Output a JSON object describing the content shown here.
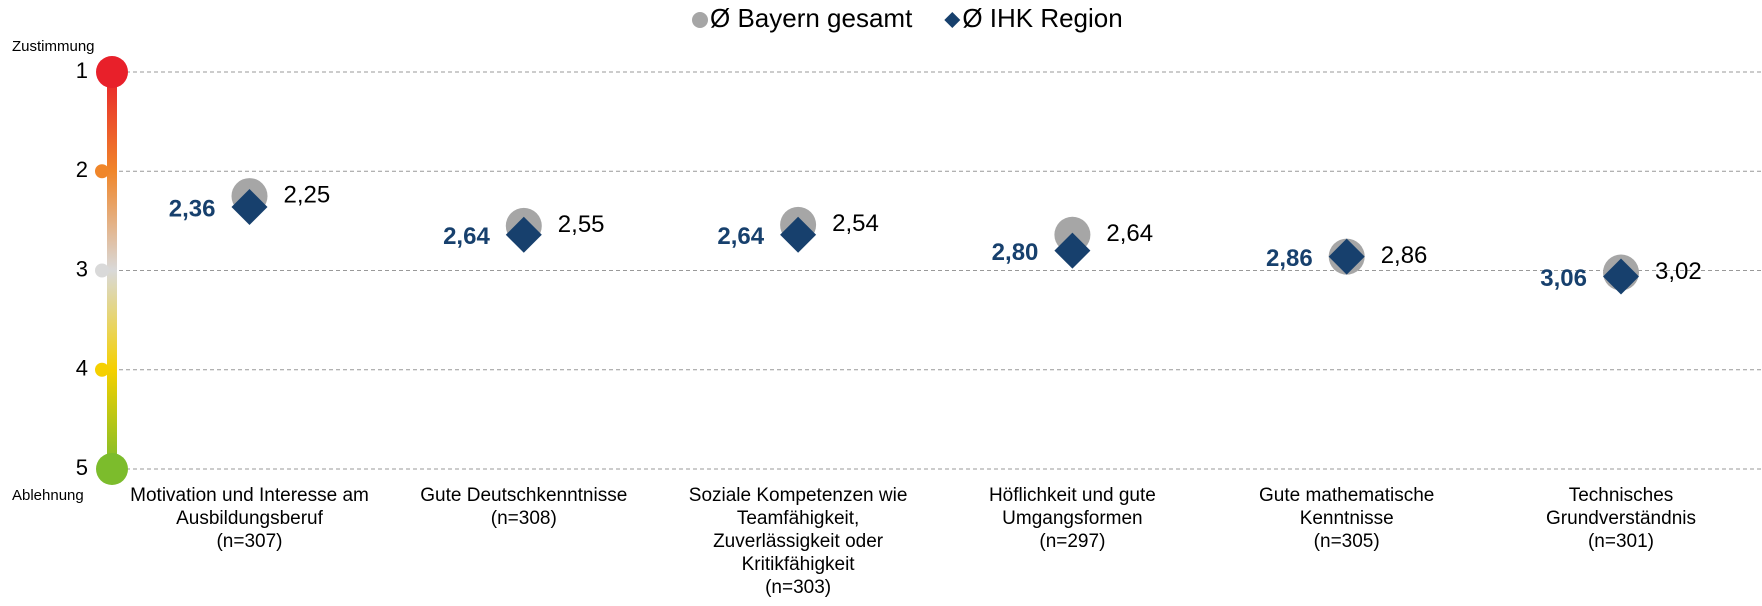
{
  "chart_data": {
    "type": "dot",
    "categories": [
      "Motivation und Interesse am\nAusbildungsberuf\n(n=307)",
      "Gute Deutschkenntnisse\n(n=308)",
      "Soziale Kompetenzen wie\nTeamfähigkeit,\nZuverlässigkeit oder\nKritikfähigkeit\n(n=303)",
      "Höflichkeit und gute\nUmgangsformen\n(n=297)",
      "Gute mathematische\nKenntnisse\n(n=305)",
      "Technisches\nGrundverständnis\n(n=301)"
    ],
    "series": [
      {
        "name": "Ø Bayern gesamt",
        "color": "#a6a6a6",
        "marker": "circle",
        "values": [
          2.25,
          2.55,
          2.54,
          2.64,
          2.86,
          3.02
        ],
        "value_labels": [
          "2,25",
          "2,55",
          "2,54",
          "2,64",
          "2,86",
          "3,02"
        ]
      },
      {
        "name": "Ø IHK Region",
        "color": "#17406d",
        "marker": "diamond",
        "values": [
          2.36,
          2.64,
          2.64,
          2.8,
          2.86,
          3.06
        ],
        "value_labels": [
          "2,36",
          "2,64",
          "2,64",
          "2,80",
          "2,86",
          "3,06"
        ]
      }
    ],
    "ylim": [
      1,
      5
    ],
    "yticks": [
      1,
      2,
      3,
      4,
      5
    ],
    "y_inverted": true,
    "grid": true,
    "y_top_label": "Zustimmung",
    "y_bottom_label": "Ablehnung",
    "legend": "top"
  }
}
